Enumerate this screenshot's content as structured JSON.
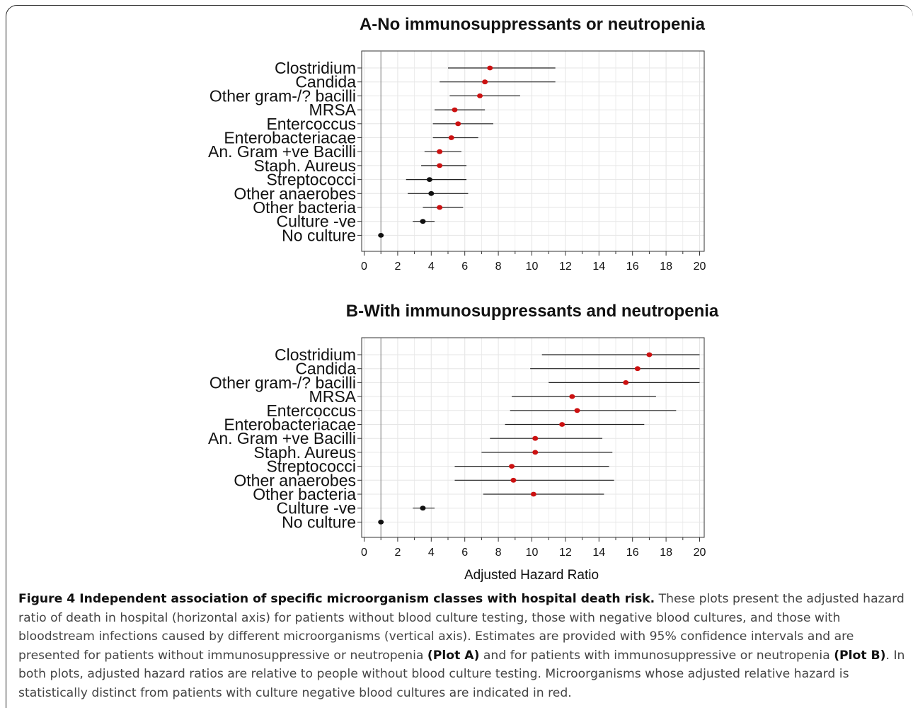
{
  "chart_data": [
    {
      "type": "forest",
      "title": "A-No immunosuppressants or neutropenia",
      "xlabel": "",
      "xlim": [
        0,
        20
      ],
      "xticks": [
        0,
        2,
        4,
        6,
        8,
        10,
        12,
        14,
        16,
        18,
        20
      ],
      "reference_line": 1,
      "grid": true,
      "categories": [
        "Clostridium",
        "Candida",
        "Other gram-/? bacilli",
        "MRSA",
        "Entercoccus",
        "Enterobacteriacae",
        "An. Gram +ve Bacilli",
        "Staph. Aureus",
        "Streptococci",
        "Other anaerobes",
        "Other bacteria",
        "Culture -ve",
        "No culture"
      ],
      "estimates": [
        7.5,
        7.2,
        6.9,
        5.4,
        5.6,
        5.2,
        4.5,
        4.5,
        3.9,
        4.0,
        4.5,
        3.5,
        1.0
      ],
      "ci_low": [
        5.0,
        4.5,
        5.1,
        4.2,
        4.1,
        4.1,
        3.6,
        3.4,
        2.5,
        2.6,
        3.5,
        2.9,
        1.0
      ],
      "ci_high": [
        11.4,
        11.4,
        9.3,
        7.2,
        7.7,
        6.8,
        5.8,
        6.1,
        6.1,
        6.2,
        5.9,
        4.2,
        1.0
      ],
      "significant": [
        true,
        true,
        true,
        true,
        true,
        true,
        true,
        true,
        false,
        false,
        true,
        false,
        false
      ],
      "colors": {
        "significant": "#cc1111",
        "not_significant": "#111111"
      }
    },
    {
      "type": "forest",
      "title": "B-With immunosuppressants and neutropenia",
      "xlabel": "Adjusted Hazard Ratio",
      "xlim": [
        0,
        20
      ],
      "xticks": [
        0,
        2,
        4,
        6,
        8,
        10,
        12,
        14,
        16,
        18,
        20
      ],
      "reference_line": 1,
      "grid": true,
      "categories": [
        "Clostridium",
        "Candida",
        "Other gram-/? bacilli",
        "MRSA",
        "Entercoccus",
        "Enterobacteriacae",
        "An. Gram +ve Bacilli",
        "Staph. Aureus",
        "Streptococci",
        "Other anaerobes",
        "Other bacteria",
        "Culture -ve",
        "No culture"
      ],
      "estimates": [
        17.0,
        16.3,
        15.6,
        12.4,
        12.7,
        11.8,
        10.2,
        10.2,
        8.8,
        8.9,
        10.1,
        3.5,
        1.0
      ],
      "ci_low": [
        10.6,
        9.9,
        11.0,
        8.8,
        8.7,
        8.4,
        7.5,
        7.0,
        5.4,
        5.4,
        7.1,
        2.9,
        1.0
      ],
      "ci_high": [
        20.0,
        20.0,
        20.0,
        17.4,
        18.6,
        16.7,
        14.2,
        14.8,
        14.6,
        14.9,
        14.3,
        4.2,
        1.0
      ],
      "significant": [
        true,
        true,
        true,
        true,
        true,
        true,
        true,
        true,
        true,
        true,
        true,
        false,
        false
      ],
      "colors": {
        "significant": "#cc1111",
        "not_significant": "#111111"
      }
    }
  ],
  "caption": {
    "label": "Figure 4 Independent association of specific microorganism classes with hospital death risk.",
    "text_1": " These plots present the adjusted hazard ratio of death in hospital (horizontal axis) for patients without blood culture testing, those with negative blood cultures, and those with bloodstream infections caused by different microorganisms (vertical axis). Estimates are provided with 95% confidence intervals and are presented for patients without immunosuppressive or neutropenia ",
    "plot_a": "(Plot A)",
    "text_2": " and for patients with immunosuppressive or neutropenia ",
    "plot_b": "(Plot B)",
    "text_3": ". In both plots, adjusted hazard ratios are relative to people without blood culture testing. Microorganisms whose adjusted relative hazard is statistically distinct from patients with culture negative blood cultures are indicated in red."
  }
}
